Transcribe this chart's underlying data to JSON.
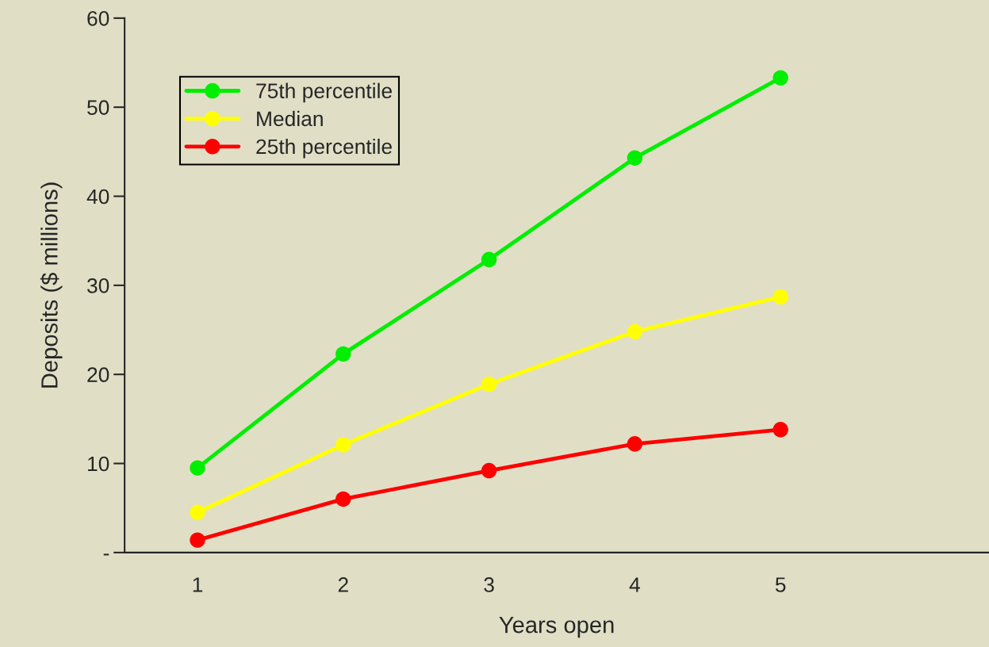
{
  "chart_data": {
    "type": "line",
    "xlabel": "Years open",
    "ylabel": "Deposits ($ millions)",
    "categories": [
      "1",
      "2",
      "3",
      "4",
      "5"
    ],
    "series": [
      {
        "name": "75th percentile",
        "color": "#00ee00",
        "values": [
          9.5,
          22.3,
          32.9,
          44.3,
          53.3
        ]
      },
      {
        "name": "Median",
        "color": "#ffff00",
        "values": [
          4.5,
          12.1,
          18.9,
          24.8,
          28.7
        ]
      },
      {
        "name": "25th percentile",
        "color": "#ff0000",
        "values": [
          1.4,
          6.0,
          9.2,
          12.2,
          13.8
        ]
      }
    ],
    "ylim": [
      0,
      60
    ],
    "yticks": [
      {
        "value": 0,
        "label": "-"
      },
      10,
      20,
      30,
      40,
      50,
      60
    ],
    "grid": false,
    "legend": "top left",
    "marker": "circle",
    "line_style": "solid"
  }
}
